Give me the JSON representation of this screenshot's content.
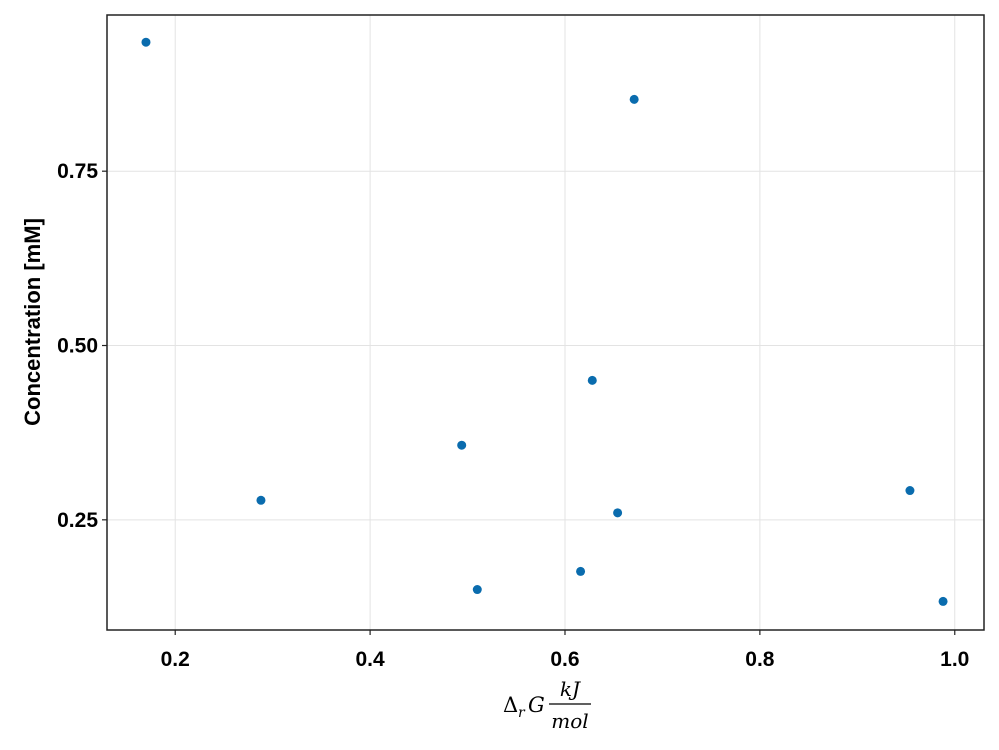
{
  "chart_data": {
    "type": "scatter",
    "title": "",
    "xlabel": {
      "delta": "Δ",
      "sub": "r",
      "var": "G",
      "numerator": "kJ",
      "denominator": "mol"
    },
    "ylabel": "Concentration [mM]",
    "xlim": [
      0.13,
      1.03
    ],
    "ylim": [
      0.092,
      0.974
    ],
    "x_ticks": [
      0.2,
      0.4,
      0.6,
      0.8,
      1.0
    ],
    "x_tick_labels": [
      "0.2",
      "0.4",
      "0.6",
      "0.8",
      "1.0"
    ],
    "y_ticks": [
      0.25,
      0.5,
      0.75
    ],
    "y_tick_labels": [
      "0.25",
      "0.50",
      "0.75"
    ],
    "grid": true,
    "legend": "none",
    "marker_color": "#0a6cae",
    "series": [
      {
        "x": [
          0.17,
          0.288,
          0.494,
          0.51,
          0.616,
          0.628,
          0.654,
          0.671,
          0.954,
          0.988
        ],
        "y": [
          0.935,
          0.278,
          0.357,
          0.15,
          0.176,
          0.45,
          0.26,
          0.853,
          0.292,
          0.133
        ]
      }
    ]
  }
}
